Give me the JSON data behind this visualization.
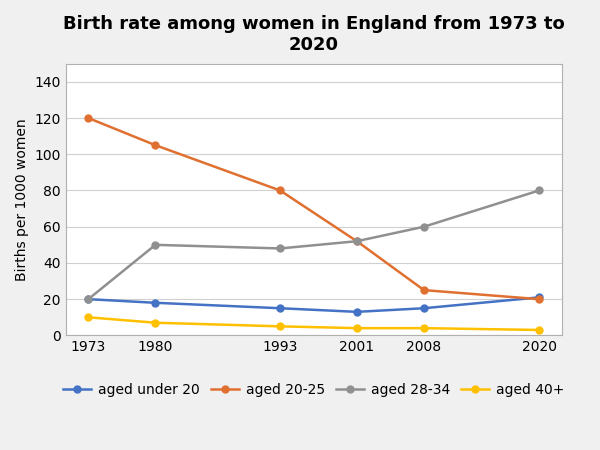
{
  "title": "Birth rate among women in England from 1973 to\n2020",
  "ylabel": "Births per 1000 women",
  "years": [
    1973,
    1980,
    1993,
    2001,
    2008,
    2020
  ],
  "series": [
    {
      "label": "aged under 20",
      "color": "#4472C4",
      "marker": "o",
      "values": [
        20,
        18,
        15,
        13,
        15,
        21
      ]
    },
    {
      "label": "aged 20-25",
      "color": "#E07030",
      "marker": "o",
      "values": [
        120,
        105,
        80,
        52,
        25,
        20
      ]
    },
    {
      "label": "aged 28-34",
      "color": "#909090",
      "marker": "o",
      "values": [
        20,
        50,
        48,
        52,
        60,
        80
      ]
    },
    {
      "label": "aged 40+",
      "color": "#FFC000",
      "marker": "o",
      "values": [
        10,
        7,
        5,
        4,
        4,
        3
      ]
    }
  ],
  "ylim": [
    0,
    150
  ],
  "yticks": [
    0,
    20,
    40,
    60,
    80,
    100,
    120,
    140
  ],
  "figure_bg": "#f0f0f0",
  "axes_bg": "#ffffff",
  "title_fontsize": 13,
  "tick_fontsize": 10,
  "legend_fontsize": 10,
  "axis_label_fontsize": 10,
  "grid_color": "#d0d0d0",
  "spine_color": "#b0b0b0"
}
